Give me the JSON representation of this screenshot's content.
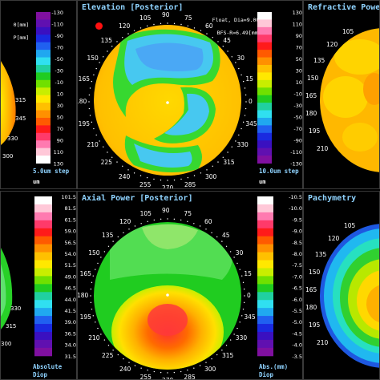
{
  "panels": {
    "top_left": {
      "header_lines": [
        "0[mm]",
        "P[mm]"
      ],
      "scale_labels": [
        "-130",
        "-110",
        "-90",
        "-70",
        "-50",
        "-30",
        "-10",
        "10",
        "30",
        "50",
        "70",
        "90",
        "110",
        "130"
      ],
      "step": "5.0um step",
      "unit": "um",
      "angles": [
        "315",
        "345",
        "330",
        "300"
      ]
    },
    "elevation": {
      "title": "Elevation [Posterior]",
      "header_lines": [
        "Float, Dia=9.00[mm]",
        "BFS-R=6.49[mm]"
      ],
      "angles": [
        "90",
        "75",
        "105",
        "60",
        "120",
        "45",
        "135",
        "30",
        "150",
        "15",
        "165",
        "0",
        "180",
        "345",
        "195",
        "330",
        "210",
        "315",
        "225",
        "300",
        "240",
        "285",
        "255",
        "270"
      ]
    },
    "top_center_scale": {
      "labels": [
        "130",
        "110",
        "90",
        "70",
        "50",
        "30",
        "10",
        "-10",
        "-30",
        "-50",
        "-70",
        "-90",
        "-110",
        "-130"
      ],
      "step": "10.0um step",
      "unit": "um"
    },
    "refractive": {
      "title": "Refractive Powe",
      "angles": [
        "105",
        "120",
        "135",
        "150",
        "165",
        "180",
        "195",
        "210"
      ]
    },
    "bottom_left": {
      "scale_labels": [
        "101.5",
        "81.5",
        "61.5",
        "59.0",
        "56.5",
        "54.0",
        "51.5",
        "49.0",
        "46.5",
        "44.0",
        "41.5",
        "39.0",
        "36.5",
        "34.0",
        "31.5"
      ],
      "angles": [
        "330",
        "315",
        "300"
      ],
      "step": "Absolute",
      "unit": "Diop"
    },
    "axial": {
      "title": "Axial Power [Posterior]",
      "angles": [
        "90",
        "75",
        "105",
        "60",
        "120",
        "45",
        "135",
        "30",
        "150",
        "15",
        "165",
        "0",
        "180",
        "345",
        "195",
        "330",
        "210",
        "315",
        "225",
        "300",
        "240",
        "285",
        "255",
        "270"
      ]
    },
    "bottom_center_scale": {
      "labels": [
        "-10.5",
        "-10.0",
        "-9.5",
        "-9.0",
        "-8.5",
        "-8.0",
        "-7.5",
        "-7.0",
        "-6.5",
        "-6.0",
        "-5.5",
        "-5.0",
        "-4.5",
        "-4.0",
        "-3.5"
      ],
      "step": "Abs.(mm)",
      "unit": "Diop"
    },
    "pachymetry": {
      "title": "Pachymetry",
      "angles": [
        "105",
        "120",
        "135",
        "150",
        "165",
        "180",
        "195",
        "210"
      ]
    }
  }
}
